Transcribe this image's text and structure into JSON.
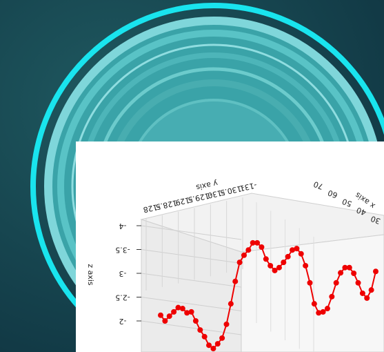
{
  "chart_data": {
    "type": "line3d",
    "x_label": "x axis",
    "y_label": "y axis",
    "z_label": "z axis",
    "xticks": [
      70,
      60,
      50,
      40,
      30
    ],
    "yticks": [
      -128.0,
      -128.5,
      -129.0,
      -129.5,
      -130.0,
      -130.5,
      -131.0
    ],
    "zticks": [
      -4.0,
      -3.5,
      -3.0,
      -2.5,
      -2.0
    ],
    "zlim": [
      -4.0,
      -2.0
    ],
    "color": "#ee0000",
    "values": [
      -2.12,
      -2.0,
      -2.1,
      -2.19,
      -2.28,
      -2.26,
      -2.17,
      -2.19,
      -2.0,
      -1.81,
      -1.67,
      -1.49,
      -1.42,
      -1.52,
      -1.64,
      -1.93,
      -2.36,
      -2.83,
      -3.23,
      -3.38,
      -3.49,
      -3.64,
      -3.64,
      -3.55,
      -3.3,
      -3.16,
      -3.06,
      -3.12,
      -3.23,
      -3.35,
      -3.49,
      -3.52,
      -3.41,
      -3.16,
      -2.8,
      -2.36,
      -2.17,
      -2.19,
      -2.26,
      -2.51,
      -2.8,
      -3.01,
      -3.12,
      -3.12,
      -3.0,
      -2.8,
      -2.58,
      -2.48,
      -2.65,
      -3.04
    ]
  }
}
